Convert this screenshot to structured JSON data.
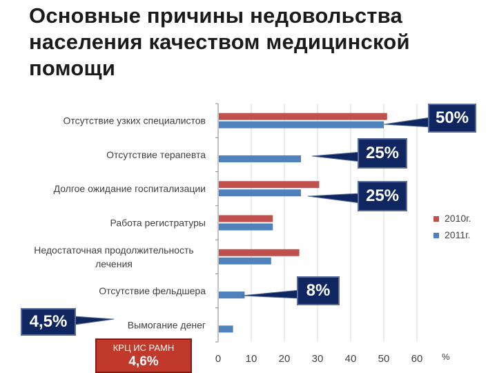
{
  "title": "Основные причины недовольства населения качеством медицинской помощи",
  "chart_data": {
    "type": "bar",
    "orientation": "horizontal",
    "categories": [
      "Отсутствие узких специалистов",
      "Отсутствие терапевта",
      "Долгое ожидание госпитализации",
      "Работа регистратуры",
      "Недостаточная продолжительность лечения",
      "Отсутствие фельдшера",
      "Вымогание денег"
    ],
    "series": [
      {
        "name": "2010г.",
        "color": "#c0504d",
        "values": [
          51,
          null,
          30.5,
          16.5,
          24.5,
          null,
          null
        ]
      },
      {
        "name": "2011г.",
        "color": "#4f81bd",
        "values": [
          50,
          25,
          25,
          16.5,
          16,
          8,
          4.5
        ]
      }
    ],
    "xlim": [
      0,
      60
    ],
    "xticks": [
      "0",
      "10",
      "20",
      "30",
      "40",
      "50",
      "60"
    ],
    "xunit": "%",
    "grid": true,
    "legend": "right",
    "callouts": [
      "50%",
      "25%",
      "25%",
      "8%",
      "4,5%"
    ]
  },
  "note_box": {
    "line1": "КРЦ ИС РАМН",
    "line2": "4,6%",
    "color": "#c0392b"
  }
}
